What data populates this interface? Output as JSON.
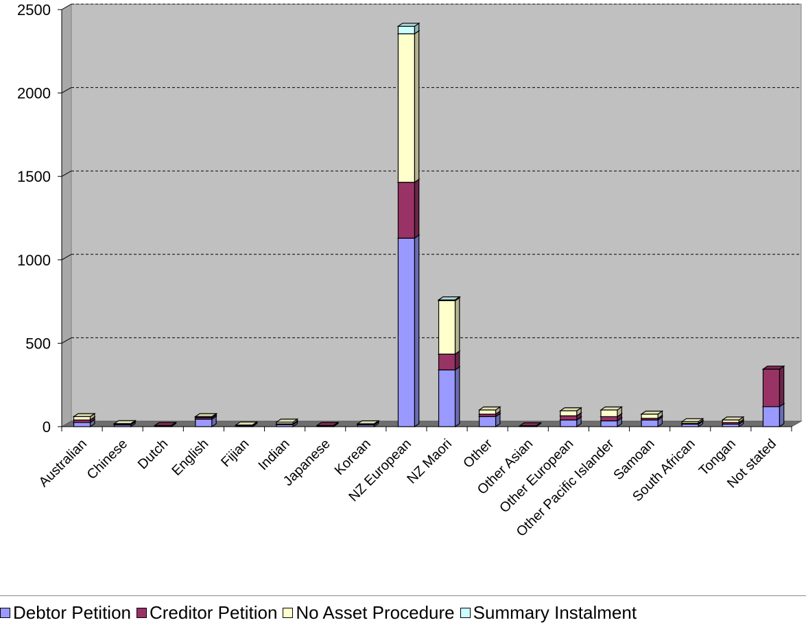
{
  "chart_data": {
    "type": "bar",
    "stacked": true,
    "three_d": true,
    "title": "",
    "xlabel": "",
    "ylabel": "",
    "ylim": [
      0,
      2500
    ],
    "yticks": [
      0,
      500,
      1000,
      1500,
      2000,
      2500
    ],
    "grid": "horizontal dashed",
    "legend_position": "bottom",
    "plot_background": "#c0c0c0",
    "categories": [
      "Australian",
      "Chinese",
      "Dutch",
      "English",
      "Fijian",
      "Indian",
      "Japanese",
      "Korean",
      "NZ European",
      "NZ Maori",
      "Other",
      "Other Asian",
      "Other European",
      "Other Pacific Islander",
      "Samoan",
      "South African",
      "Tongan",
      "Not stated"
    ],
    "series": [
      {
        "name": "Debtor Petition",
        "color": "#9999ff",
        "values": [
          25,
          10,
          2,
          45,
          5,
          12,
          2,
          10,
          1130,
          340,
          60,
          3,
          40,
          35,
          40,
          15,
          15,
          120
        ]
      },
      {
        "name": "Creditor Petition",
        "color": "#993366",
        "values": [
          15,
          5,
          5,
          10,
          2,
          5,
          5,
          5,
          335,
          95,
          15,
          2,
          25,
          25,
          10,
          5,
          10,
          225
        ]
      },
      {
        "name": "No Asset Procedure",
        "color": "#ffffcc",
        "values": [
          20,
          3,
          0,
          5,
          3,
          10,
          0,
          2,
          890,
          320,
          25,
          0,
          30,
          40,
          25,
          10,
          15,
          0
        ]
      },
      {
        "name": "Summary Instalment",
        "color": "#ccffff",
        "values": [
          0,
          0,
          0,
          0,
          0,
          0,
          0,
          0,
          45,
          5,
          0,
          0,
          0,
          0,
          0,
          0,
          0,
          0
        ]
      }
    ]
  }
}
